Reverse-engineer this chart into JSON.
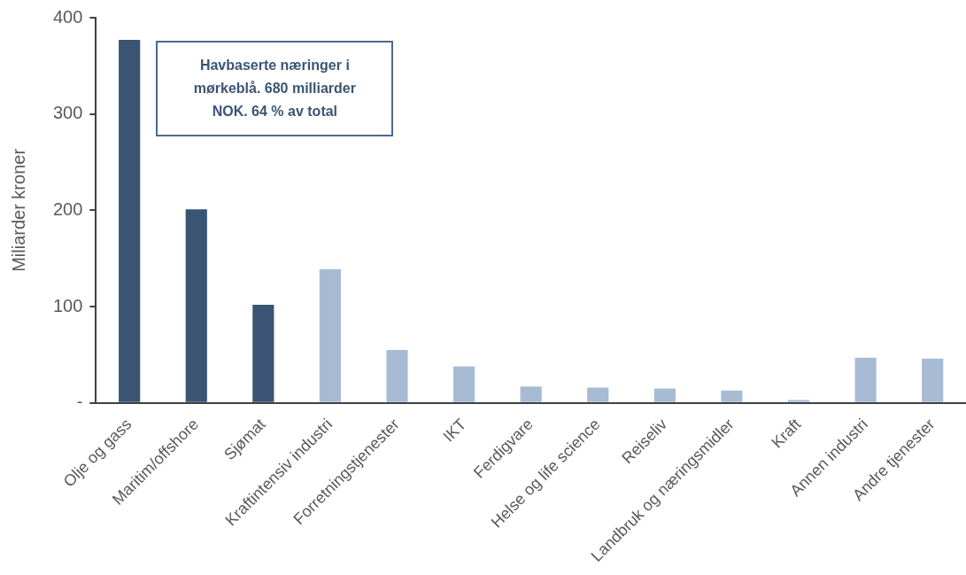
{
  "chart_data": {
    "type": "bar",
    "ylabel": "Miliarder kroner",
    "annotations": [
      "Havbaserte næringer i mørkeblå. 680 milliarder NOK. 64 % av total"
    ],
    "categories": [
      "Olje og gass",
      "Maritim/offshore",
      "Sjømat",
      "Kraftintensiv industri",
      "Forretningstjenester",
      "IKT",
      "Ferdigvare",
      "Helse og life science",
      "Reiseliv",
      "Landbruk og næringsmidler",
      "Kraft",
      "Annen industri",
      "Andre tjenester"
    ],
    "values": [
      377,
      201,
      102,
      139,
      55,
      38,
      17,
      16,
      15,
      13,
      3,
      47,
      46
    ],
    "colors": [
      "#3a5574",
      "#3a5574",
      "#3a5574",
      "#a7bcd4",
      "#a7bcd4",
      "#a7bcd4",
      "#a7bcd4",
      "#a7bcd4",
      "#a7bcd4",
      "#a7bcd4",
      "#a7bcd4",
      "#a7bcd4",
      "#a7bcd4"
    ],
    "ylim": [
      0,
      400
    ],
    "yticks": [
      {
        "value": 0,
        "label": "-"
      },
      100,
      200,
      300,
      400
    ]
  }
}
